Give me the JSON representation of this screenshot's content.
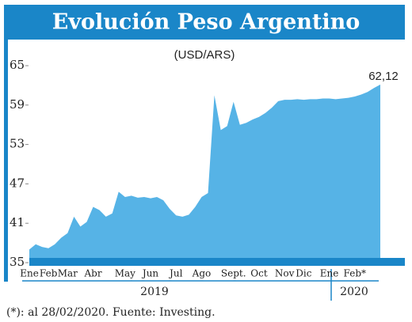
{
  "chart_data": {
    "type": "area",
    "title": "Evolución Peso Argentino",
    "subtitle": "(USD/ARS)",
    "categories": [
      "Ene",
      null,
      null,
      "Feb",
      null,
      null,
      "Mar",
      null,
      null,
      null,
      "Abr",
      null,
      null,
      null,
      null,
      "May",
      null,
      null,
      null,
      "Jun",
      null,
      null,
      null,
      "Jul",
      null,
      null,
      null,
      "Ago",
      null,
      null,
      null,
      null,
      "Sept.",
      null,
      null,
      null,
      "Oct",
      null,
      null,
      null,
      "Nov",
      null,
      null,
      "Dic",
      null,
      null,
      null,
      "Ene",
      null,
      null,
      null,
      "Feb*",
      null,
      null,
      null,
      null
    ],
    "values": [
      37.0,
      37.8,
      37.4,
      37.2,
      37.8,
      38.8,
      39.5,
      42.0,
      40.5,
      41.2,
      43.5,
      43.0,
      42.0,
      42.5,
      45.8,
      45.0,
      45.2,
      44.9,
      45.0,
      44.8,
      45.0,
      44.5,
      43.2,
      42.2,
      42.0,
      42.3,
      43.5,
      45.0,
      45.6,
      60.5,
      55.2,
      55.8,
      59.5,
      56.0,
      56.3,
      56.8,
      57.2,
      57.8,
      58.6,
      59.6,
      59.8,
      59.8,
      59.9,
      59.8,
      59.9,
      59.9,
      60.0,
      60.0,
      59.9,
      60.0,
      60.1,
      60.3,
      60.6,
      61.0,
      61.6,
      62.12
    ],
    "value_labels": [
      null,
      null,
      null,
      null,
      null,
      null,
      null,
      null,
      null,
      null,
      null,
      null,
      null,
      null,
      null,
      null,
      null,
      null,
      null,
      null,
      null,
      null,
      null,
      null,
      null,
      null,
      null,
      null,
      null,
      null,
      null,
      null,
      null,
      null,
      null,
      null,
      null,
      null,
      null,
      null,
      null,
      null,
      null,
      null,
      null,
      null,
      null,
      null,
      null,
      null,
      null,
      null,
      null,
      null,
      null,
      "62,12"
    ],
    "years": [
      "2019",
      "2020"
    ],
    "color": "#56b3e6",
    "ylim": [
      35,
      65
    ],
    "yticks": [
      35,
      41,
      47,
      53,
      59,
      65
    ],
    "note": "(*): al 28/02/2020. Fuente: Investing."
  }
}
